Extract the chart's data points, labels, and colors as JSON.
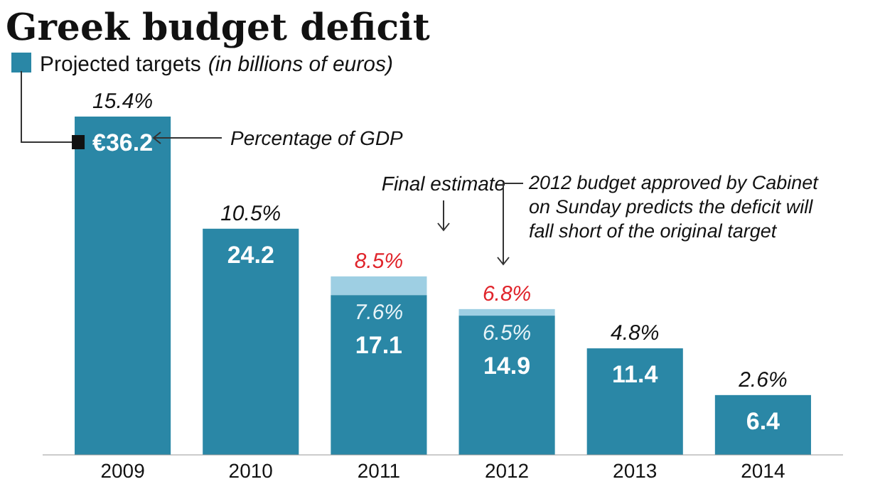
{
  "chart_data": {
    "type": "bar",
    "stacked": true,
    "title": "Greek budget deficit",
    "subtitle": "(in billions of euros)",
    "legend": "top left",
    "categories": [
      "2009",
      "2010",
      "2011",
      "2012",
      "2013",
      "2014"
    ],
    "series": [
      {
        "name": "Projected targets",
        "color": "#2a87a6",
        "values": [
          36.2,
          24.2,
          17.1,
          14.9,
          11.4,
          6.4
        ],
        "value_labels": [
          "€36.2",
          "24.2",
          "17.1",
          "14.9",
          "11.4",
          "6.4"
        ]
      },
      {
        "color": "#9ecfe3",
        "values": [
          null,
          null,
          2.0,
          0.7,
          null,
          null
        ]
      }
    ],
    "annotations": [
      {
        "text": "15.4%",
        "x": "2009",
        "y": 36.2
      },
      {
        "text": "10.5%",
        "x": "2010",
        "y": 24.2
      },
      {
        "text": "8.5%",
        "x": "2011",
        "y": 19.1
      },
      {
        "text": "7.6%",
        "x": "2011",
        "y": 17.1
      },
      {
        "text": "6.8%",
        "x": "2012",
        "y": 15.6
      },
      {
        "text": "6.5%",
        "x": "2012",
        "y": 14.9
      },
      {
        "text": "4.8%",
        "x": "2013",
        "y": 11.4
      },
      {
        "text": "2.6%",
        "x": "2014",
        "y": 6.4
      },
      "Percentage of GDP",
      "Final estimate",
      "2012 budget approved by Cabinet\non Sunday predicts the deficit will\nfall short of the original target"
    ]
  }
}
